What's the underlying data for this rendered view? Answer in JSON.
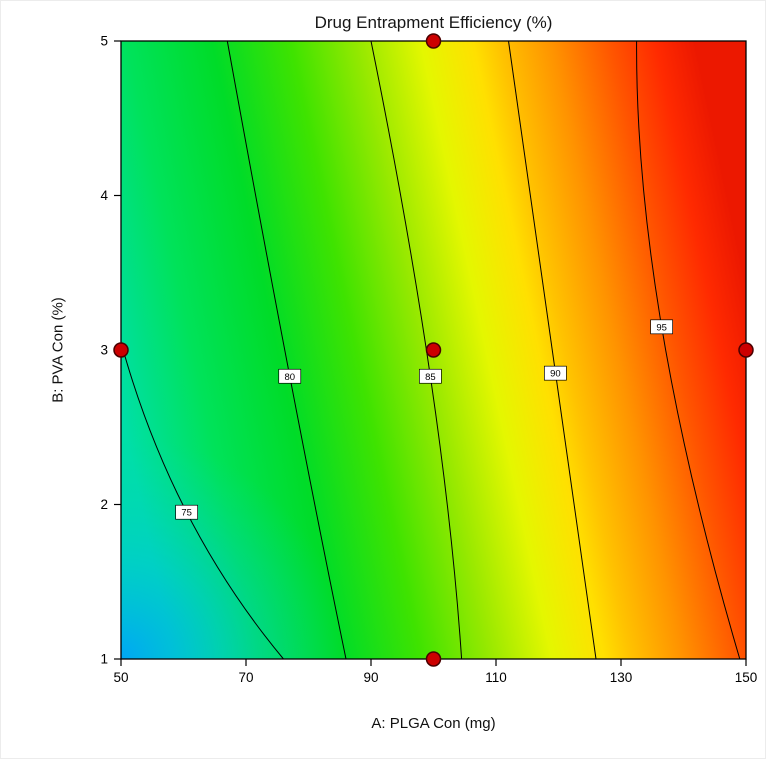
{
  "chart_data": {
    "type": "contour",
    "title": "Drug Entrapment Efficiency (%)",
    "xlabel": "A: PLGA Con (mg)",
    "ylabel": "B: PVA Con (%)",
    "xlim": [
      50,
      150
    ],
    "ylim": [
      1,
      5
    ],
    "x_ticks": [
      50,
      70,
      90,
      110,
      130,
      150
    ],
    "y_ticks": [
      1,
      2,
      3,
      4,
      5
    ],
    "grid": false,
    "legend": false,
    "contours": [
      {
        "level": 75,
        "label": "75",
        "points": [
          [
            50,
            3.05
          ],
          [
            60.5,
            1.95
          ],
          [
            76,
            1.0
          ]
        ]
      },
      {
        "level": 80,
        "label": "80",
        "points": [
          [
            67,
            5.0
          ],
          [
            77,
            2.83
          ],
          [
            86,
            1.0
          ]
        ]
      },
      {
        "level": 85,
        "label": "85",
        "points": [
          [
            90,
            5.0
          ],
          [
            99.5,
            2.83
          ],
          [
            104.5,
            1.0
          ]
        ]
      },
      {
        "level": 90,
        "label": "90",
        "points": [
          [
            112,
            5.0
          ],
          [
            119.5,
            2.85
          ],
          [
            126,
            1.0
          ]
        ]
      },
      {
        "level": 95,
        "label": "95",
        "points": [
          [
            132.5,
            5.0
          ],
          [
            136.5,
            3.15
          ],
          [
            149,
            1.0
          ]
        ]
      }
    ],
    "design_points": [
      {
        "x": 100,
        "y": 5
      },
      {
        "x": 50,
        "y": 3
      },
      {
        "x": 100,
        "y": 3
      },
      {
        "x": 150,
        "y": 3
      },
      {
        "x": 100,
        "y": 1
      }
    ],
    "style": {
      "contour_line_color": "#000000",
      "contour_label_bg": "#ffffff",
      "design_point_fill": "#cc0000",
      "design_point_stroke": "#4a0000",
      "frame_color": "#000000",
      "surface_gradient_stops": [
        {
          "pos": 0,
          "color": "#00dfa8"
        },
        {
          "pos": 13,
          "color": "#00e25a"
        },
        {
          "pos": 26,
          "color": "#00dc28"
        },
        {
          "pos": 38,
          "color": "#3fe300"
        },
        {
          "pos": 49,
          "color": "#9be900"
        },
        {
          "pos": 58,
          "color": "#e4f700"
        },
        {
          "pos": 66,
          "color": "#ffe000"
        },
        {
          "pos": 70,
          "color": "#ffc300"
        },
        {
          "pos": 78,
          "color": "#ff9300"
        },
        {
          "pos": 87,
          "color": "#ff5500"
        },
        {
          "pos": 94,
          "color": "#ff2a00"
        },
        {
          "pos": 100,
          "color": "#ec1800"
        }
      ],
      "low_corner_color": "#00a4f8"
    }
  }
}
